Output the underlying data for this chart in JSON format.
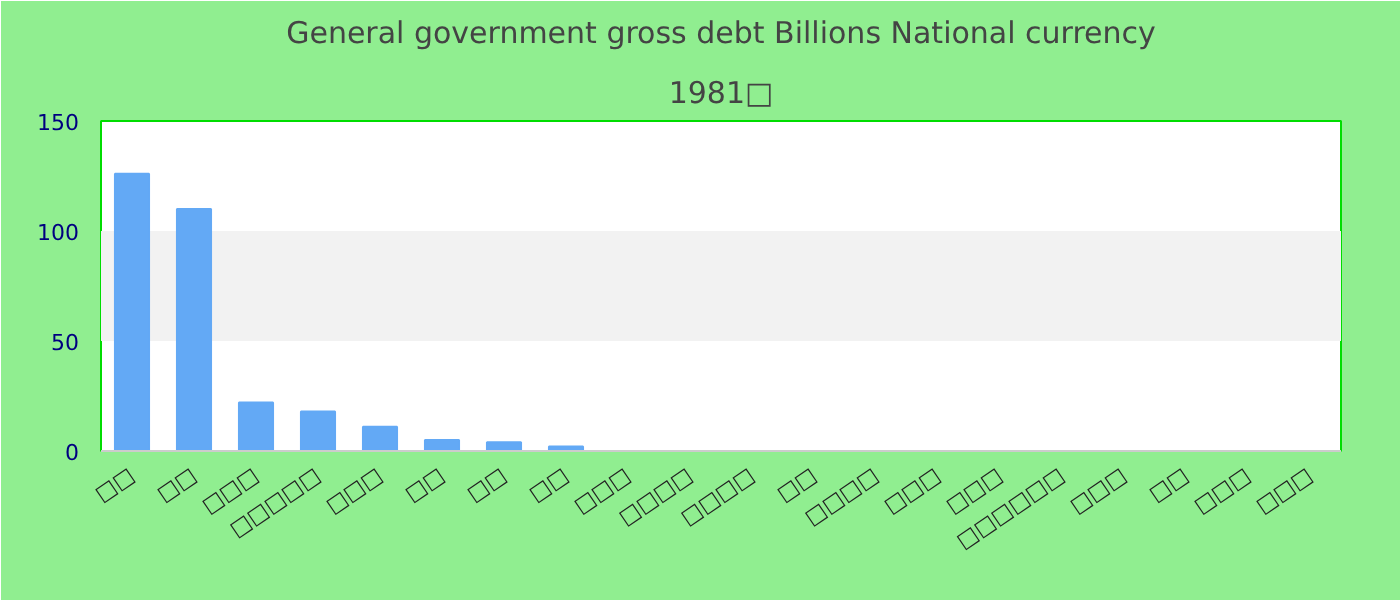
{
  "chart_data": {
    "type": "bar",
    "title": "General government gross debt Billions National currency",
    "subtitle": "1981□",
    "categories": [
      "□□",
      "□□",
      "□□□",
      "□□□□□",
      "□□□",
      "□□",
      "□□",
      "□□",
      "□□□",
      "□□□□",
      "□□□□",
      "□□",
      "□□□□",
      "□□□",
      "□□□",
      "□□□□□□",
      "□□□",
      "□□",
      "□□□",
      "□□□"
    ],
    "values": [
      126,
      110,
      22,
      18,
      11,
      5,
      4,
      2,
      0,
      0,
      0,
      0,
      0,
      0,
      0,
      0,
      0,
      0,
      0,
      0
    ],
    "color": "#63a9f5",
    "ylim": [
      0,
      150
    ],
    "yticks": [
      0,
      50,
      100,
      150
    ],
    "bands": [
      {
        "axis": "y",
        "from": 50,
        "to": 100,
        "color": "#f2f2f2"
      }
    ]
  }
}
